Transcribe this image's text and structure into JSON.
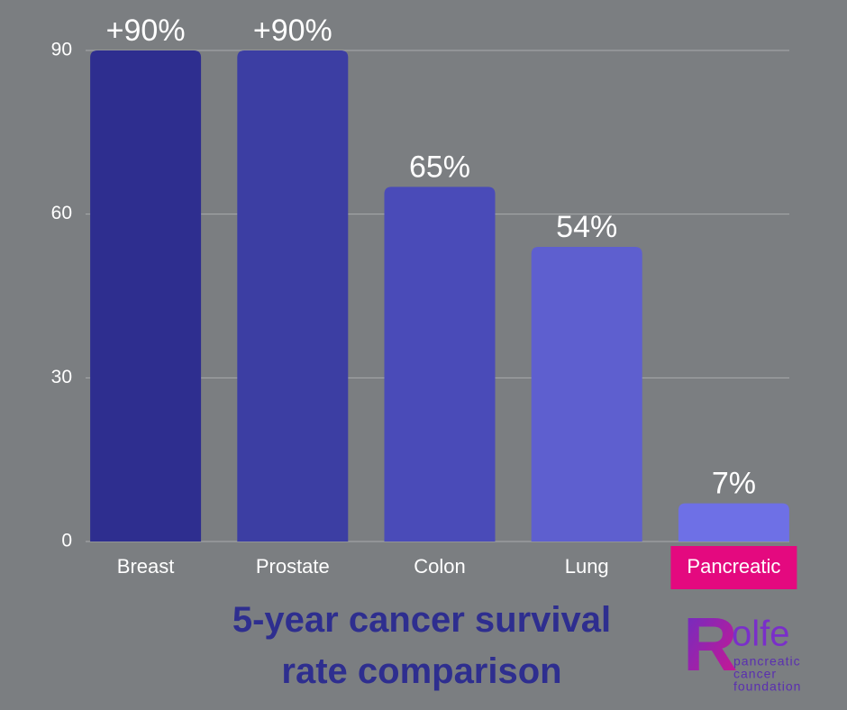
{
  "chart_data": {
    "type": "bar",
    "title": "5-year cancer survival rate comparison",
    "categories": [
      "Breast",
      "Prostate",
      "Colon",
      "Lung",
      "Pancreatic"
    ],
    "values": [
      90,
      90,
      65,
      54,
      7
    ],
    "value_labels": [
      "+90%",
      "+90%",
      "65%",
      "54%",
      "7%"
    ],
    "colors": [
      "#2e2e8f",
      "#3c3ea3",
      "#4a4bb8",
      "#5e5fcf",
      "#6e70e6"
    ],
    "ylim": [
      0,
      90
    ],
    "yticks": [
      0,
      30,
      60,
      90
    ],
    "grid": true,
    "highlight": {
      "category_index": 4,
      "color": "#e4097f"
    }
  },
  "logo": {
    "letter": "R",
    "name": "olfe",
    "tagline": [
      "pancreatic",
      "cancer",
      "foundation"
    ]
  }
}
